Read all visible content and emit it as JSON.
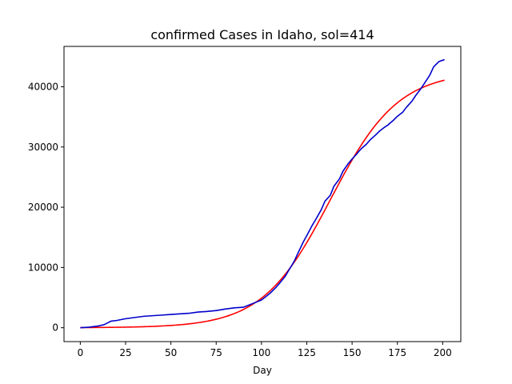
{
  "chart_data": {
    "type": "line",
    "title": "confirmed Cases in Idaho, sol=414",
    "xlabel": "Day",
    "ylabel": "",
    "xlim": [
      -9,
      210
    ],
    "ylim": [
      -2300,
      46700
    ],
    "x_ticks": [
      0,
      25,
      50,
      75,
      100,
      125,
      150,
      175,
      200
    ],
    "y_ticks": [
      0,
      10000,
      20000,
      30000,
      40000
    ],
    "grid": false,
    "legend": "none",
    "series": [
      {
        "color": "#0000cc",
        "x": [
          0,
          5,
          10,
          13,
          15,
          17,
          20,
          25,
          30,
          35,
          40,
          45,
          50,
          55,
          60,
          65,
          70,
          75,
          80,
          85,
          90,
          95,
          100,
          103,
          105,
          108,
          110,
          113,
          115,
          118,
          120,
          123,
          125,
          128,
          130,
          133,
          135,
          138,
          140,
          143,
          145,
          148,
          150,
          153,
          155,
          158,
          160,
          163,
          165,
          168,
          170,
          173,
          175,
          178,
          180,
          183,
          185,
          188,
          190,
          193,
          195,
          198,
          200,
          201
        ],
        "values": [
          0,
          100,
          300,
          500,
          800,
          1100,
          1200,
          1500,
          1700,
          1900,
          2000,
          2100,
          2200,
          2300,
          2400,
          2600,
          2700,
          2850,
          3100,
          3300,
          3400,
          4000,
          4600,
          5300,
          5800,
          6700,
          7400,
          8500,
          9500,
          11000,
          12300,
          14200,
          15300,
          17000,
          18000,
          19600,
          21000,
          22000,
          23500,
          24700,
          26000,
          27300,
          28000,
          29000,
          29700,
          30500,
          31200,
          32000,
          32600,
          33300,
          33700,
          34500,
          35100,
          35800,
          36600,
          37600,
          38500,
          39700,
          40600,
          42000,
          43300,
          44200,
          44400,
          44500
        ]
      },
      {
        "color": "#ff0000",
        "model": {
          "L": 42500,
          "k": 0.0535,
          "x0": 138
        },
        "x": [
          0,
          201
        ]
      }
    ]
  }
}
